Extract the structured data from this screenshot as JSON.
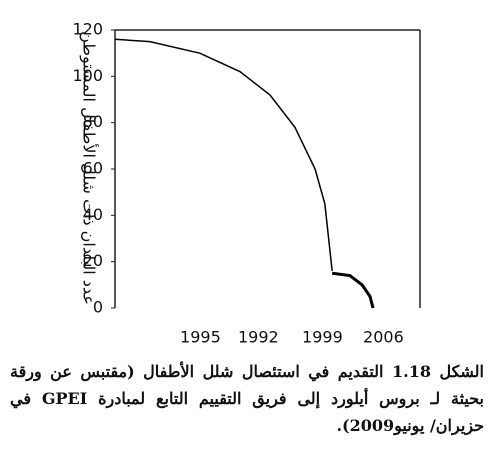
{
  "chart_data": {
    "type": "line",
    "y_label": "عدد البلدان ذات شلل الأطفال المستوطن",
    "xticks": [
      {
        "value": 1.4,
        "label": "1995"
      },
      {
        "value": 2.35,
        "label": "1992"
      },
      {
        "value": 3.4,
        "label": "1999"
      },
      {
        "value": 4.4,
        "label": "2006"
      }
    ],
    "xlim": [
      0,
      5
    ],
    "ylim": [
      0,
      120
    ],
    "yticks": [
      0,
      20,
      40,
      60,
      80,
      100,
      120
    ],
    "series": [
      {
        "color": "#000000",
        "width": 1.5,
        "x": [
          0,
          0.57,
          1.39,
          2.05,
          2.54,
          2.95,
          3.28,
          3.44,
          3.56
        ],
        "values": [
          116,
          115,
          110,
          102,
          92,
          78,
          60,
          45,
          16
        ]
      },
      {
        "color": "#000000",
        "width": 3,
        "x": [
          3.56,
          3.85,
          4.05,
          4.18,
          4.23
        ],
        "values": [
          15,
          14,
          10,
          5,
          0
        ]
      }
    ],
    "caption": "الشكل 1.18 التقديم في استئصال شلل الأطفال (مقتبس عن ورقة بحيثة لـ بروس أيلورد إلى فريق التقييم التابع لمبادرة GPEI في حزيران/ يونيو2009)."
  }
}
